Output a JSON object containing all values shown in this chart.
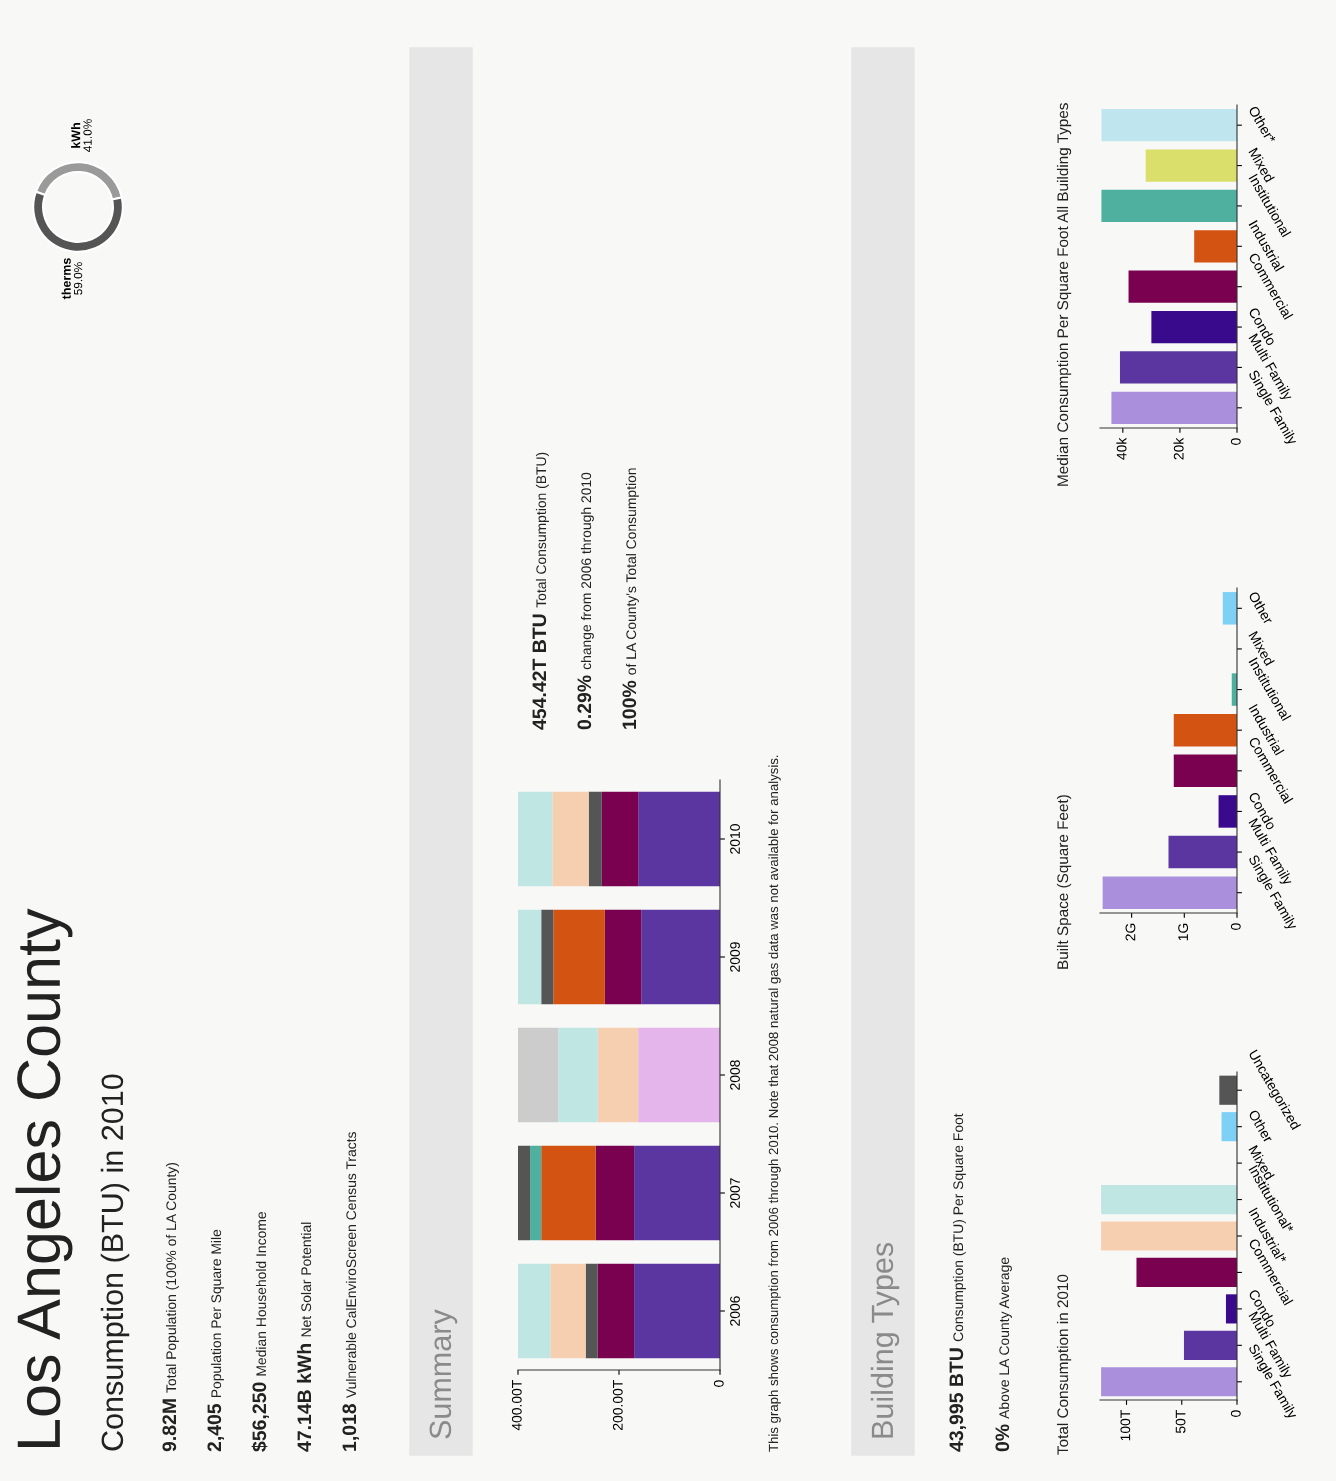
{
  "chart_data": [
    {
      "type": "other",
      "title": "Los Angeles County",
      "subtitle": "Consumption (BTU) in 2010",
      "annotations": [
        "9.82M",
        "Total Population (100% of LA County)",
        "2,405",
        "Population Per Square Mile",
        "$56,250",
        "Median Household Income",
        "47.14B kWh",
        "Net Solar Potential",
        "1,018",
        "Vulnerable CalEnviroScreen Census Tracts"
      ]
    },
    {
      "type": "donut",
      "categories": [
        "kWh",
        "therms"
      ],
      "values": [
        41.0,
        59.0
      ],
      "colors": [
        "#9a9a9a",
        "#555555"
      ],
      "value_labels": [
        "41.0%",
        "59.0%"
      ]
    },
    {
      "type": "other",
      "title": "Summary",
      "annotations": [
        "454.42T BTU",
        "Total Consumption (BTU)",
        "0.29%",
        "change from 2006 through 2010",
        "100%",
        "of LA County's Total Consumption"
      ]
    },
    {
      "type": "bar",
      "orientation": "horizontal",
      "stacked": true,
      "categories": [
        "2010",
        "2009",
        "2008",
        "2007",
        "2006"
      ],
      "xlim": [
        400,
        0
      ],
      "xticks": [
        0,
        {
          "value": 200,
          "label": "200.00T"
        },
        {
          "value": 400,
          "label": "400.00T"
        }
      ],
      "series": [
        {
          "color": "#5b35a0",
          "values": [
            162,
            156,
            null,
            170,
            170
          ]
        },
        {
          "color": "#7a0050",
          "values": [
            72,
            72,
            null,
            76,
            72
          ]
        },
        {
          "color": "#e3b5ea",
          "values": [
            null,
            null,
            162,
            null,
            null
          ]
        },
        {
          "color": "#d35312",
          "values": [
            null,
            102,
            null,
            108,
            null
          ]
        },
        {
          "color": "#4fb0a0",
          "values": [
            null,
            null,
            null,
            22,
            null
          ]
        },
        {
          "color": "#555555",
          "values": [
            26,
            24,
            null,
            24,
            24
          ]
        },
        {
          "color": "#f5cfb0",
          "values": [
            72,
            null,
            80,
            null,
            70
          ]
        },
        {
          "color": "#bfe6e2",
          "values": [
            68,
            46,
            78,
            null,
            64
          ]
        },
        {
          "color": "#cccccc",
          "values": [
            null,
            null,
            80,
            null,
            null
          ]
        }
      ],
      "annotations": [
        "This graph shows consumption from 2006 through 2010. Note that 2008 natural gas data was not available for analysis."
      ]
    },
    {
      "type": "other",
      "title": "Building Types",
      "annotations": [
        "43,995 BTU",
        "Consumption (BTU) Per Square Foot",
        "0%",
        "Above LA County Average"
      ]
    },
    {
      "type": "bar",
      "orientation": "horizontal",
      "title": "Total Consumption in 2010",
      "categories": [
        "Uncategorized",
        "Other",
        "Mixed",
        "Institutional*",
        "Industrial*",
        "Commercial",
        "Condo",
        "Multi Family",
        "Single Family"
      ],
      "values": [
        16,
        14,
        0,
        123,
        123,
        91,
        10,
        48,
        123
      ],
      "colors": [
        "#555555",
        "#7fd0f5",
        "#dadf6b",
        "#bfe6e2",
        "#f5cfb0",
        "#7a0050",
        "#3a0a8c",
        "#5b35a0",
        "#a98fdc"
      ],
      "xlim": [
        124,
        0
      ],
      "xticks": [
        0,
        {
          "value": 50,
          "label": "50T"
        },
        {
          "value": 100,
          "label": "100T"
        }
      ]
    },
    {
      "type": "bar",
      "orientation": "horizontal",
      "title": "Built Space (Square Feet)",
      "categories": [
        "Other",
        "Mixed",
        "Institutional",
        "Industrial",
        "Commercial",
        "Condo",
        "Multi Family",
        "Single Family"
      ],
      "values": [
        0.27,
        0,
        0.1,
        1.2,
        1.2,
        0.35,
        1.3,
        2.55
      ],
      "colors": [
        "#7fd0f5",
        "#dadf6b",
        "#4fb0a0",
        "#d35312",
        "#7a0050",
        "#3a0a8c",
        "#5b35a0",
        "#a98fdc"
      ],
      "xlim": [
        2.6,
        0
      ],
      "xticks": [
        0,
        {
          "value": 1,
          "label": "1G"
        },
        {
          "value": 2,
          "label": "2G"
        }
      ]
    },
    {
      "type": "bar",
      "orientation": "horizontal",
      "title": "Median Consumption Per Square Foot All Building Types",
      "categories": [
        "Other*",
        "Mixed",
        "Institutional",
        "Industrial",
        "Commercial",
        "Condo",
        "Multi Family",
        "Single Family"
      ],
      "values": [
        47.5,
        32,
        47.5,
        15,
        38,
        30,
        41,
        44
      ],
      "colors": [
        "#bfe6ef",
        "#dadf6b",
        "#4fb0a0",
        "#d35312",
        "#7a0050",
        "#3a0a8c",
        "#5b35a0",
        "#a98fdc"
      ],
      "xlim": [
        48,
        0
      ],
      "xticks": [
        0,
        {
          "value": 20,
          "label": "20k"
        },
        {
          "value": 40,
          "label": "40k"
        }
      ]
    }
  ]
}
